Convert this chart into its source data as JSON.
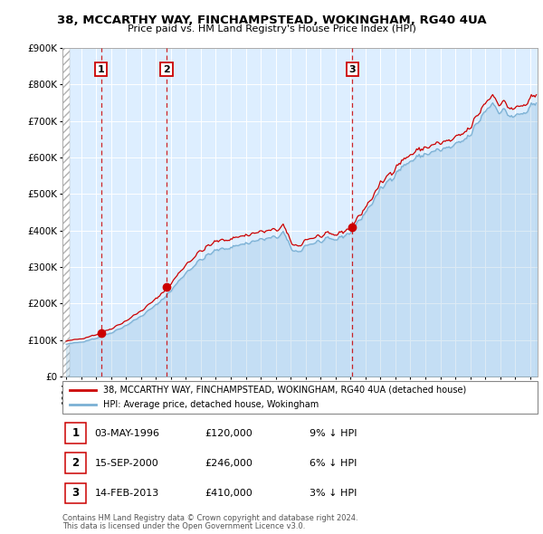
{
  "title_line1": "38, MCCARTHY WAY, FINCHAMPSTEAD, WOKINGHAM, RG40 4UA",
  "title_line2": "Price paid vs. HM Land Registry's House Price Index (HPI)",
  "sale_annotations": [
    {
      "label": "1",
      "date": "03-MAY-1996",
      "price": "£120,000",
      "pct": "9% ↓ HPI"
    },
    {
      "label": "2",
      "date": "15-SEP-2000",
      "price": "£246,000",
      "pct": "6% ↓ HPI"
    },
    {
      "label": "3",
      "date": "14-FEB-2013",
      "price": "£410,000",
      "pct": "3% ↓ HPI"
    }
  ],
  "legend_line1": "38, MCCARTHY WAY, FINCHAMPSTEAD, WOKINGHAM, RG40 4UA (detached house)",
  "legend_line2": "HPI: Average price, detached house, Wokingham",
  "footer_line1": "Contains HM Land Registry data © Crown copyright and database right 2024.",
  "footer_line2": "This data is licensed under the Open Government Licence v3.0.",
  "hpi_color": "#7ab0d4",
  "price_color": "#cc0000",
  "background_plot": "#ddeeff",
  "ylim": [
    0,
    900000
  ],
  "xlim_start": 1993.75,
  "xlim_end": 2025.5,
  "sale_years": [
    1996.336,
    2000.71,
    2013.115
  ],
  "sale_prices": [
    120000,
    246000,
    410000
  ]
}
